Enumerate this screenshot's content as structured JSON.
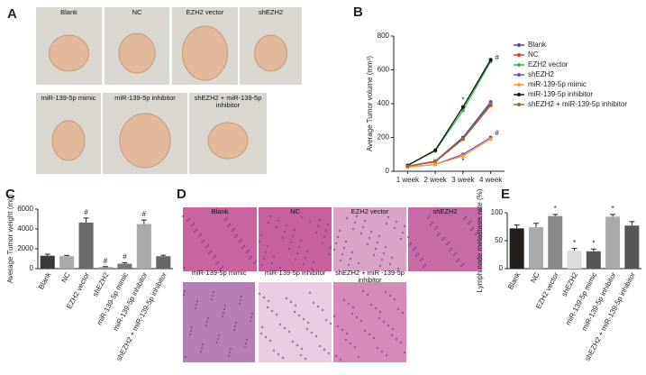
{
  "panel_labels": [
    "A",
    "B",
    "C",
    "D",
    "E"
  ],
  "panel_a": {
    "labels": [
      "Blank",
      "NC",
      "EZH2 vector",
      "shEZH2",
      "miR-139-5p mimic",
      "miR-139-5p inhibitor",
      "shEZH2 + miR-139-5p inhibitor"
    ]
  },
  "panel_d": {
    "labels": [
      "Blank",
      "NC",
      "EZH2 vector",
      "shEZH2",
      "miR-139-5p mimic",
      "miR-139-5p inhibitor",
      "shEZH2 + miR -139-5p inhibitor"
    ]
  },
  "chart_data": [
    {
      "type": "line",
      "y_label": "Average Tumor volume (mm³)",
      "categories": [
        "1 week",
        "2 week",
        "3 week",
        "4 week"
      ],
      "ylim": [
        0,
        800
      ],
      "yticks": [
        0,
        200,
        400,
        600,
        800
      ],
      "series": [
        {
          "name": "Blank",
          "color": "#3d4ea8",
          "values": [
            30,
            60,
            200,
            410
          ]
        },
        {
          "name": "NC",
          "color": "#e03a2f",
          "values": [
            30,
            55,
            190,
            390
          ]
        },
        {
          "name": "EZH2 vector",
          "color": "#3cb34a",
          "values": [
            35,
            120,
            360,
            650
          ]
        },
        {
          "name": "shEZH2",
          "color": "#7b4fa0",
          "values": [
            25,
            40,
            100,
            200
          ]
        },
        {
          "name": "miR-139-5p mimic",
          "color": "#f0a040",
          "values": [
            25,
            40,
            90,
            190
          ]
        },
        {
          "name": "miR-139-5p inhibitor",
          "color": "#111111",
          "values": [
            35,
            125,
            380,
            660
          ]
        },
        {
          "name": "shEZH2 + miR-139-5p inhibitor",
          "color": "#9a6a30",
          "values": [
            30,
            60,
            190,
            400
          ]
        }
      ],
      "annotations": [
        {
          "text": "*",
          "x": "3 week",
          "y": 420
        },
        {
          "text": "#",
          "x": "4 week",
          "y": 670
        },
        {
          "text": "#",
          "x": "4 week",
          "y": 225
        },
        {
          "text": "*",
          "x": "3 week",
          "y": 60
        }
      ]
    },
    {
      "type": "bar",
      "y_label": "Average Tumor weight (mg)",
      "categories": [
        "Blank",
        "NC",
        "EZH2 vector",
        "shEZH2",
        "miR-139-5p mimic",
        "miR-139-5p inhibitor",
        "shEZH2 + miR-139-5p inhibitor"
      ],
      "values": [
        1300,
        1250,
        4650,
        150,
        500,
        4500,
        1250
      ],
      "errors": [
        150,
        80,
        450,
        50,
        100,
        400,
        100
      ],
      "colors": [
        "#3a3a3a",
        "#aaaaaa",
        "#6a6a6a",
        "#999999",
        "#777777",
        "#aaaaaa",
        "#666666"
      ],
      "markers": [
        null,
        null,
        "#",
        "#",
        "#",
        "#",
        null
      ],
      "ylim": [
        0,
        6000
      ],
      "yticks": [
        0,
        2000,
        4000,
        6000
      ]
    },
    {
      "type": "bar",
      "y_label": "Lymph node metastasis rate (%)",
      "categories": [
        "Blank",
        "NC",
        "EZH2 vector",
        "shEZH2",
        "miR-139-5p mimic",
        "miR-139-5p inhibitor",
        "shEZH2 + miR-139-5p inhibitor"
      ],
      "values": [
        72,
        74,
        94,
        32,
        31,
        93,
        77
      ],
      "errors": [
        6,
        7,
        3,
        4,
        4,
        4,
        7
      ],
      "colors": [
        "#231f1d",
        "#aaaaaa",
        "#888888",
        "#dddddd",
        "#555555",
        "#aaaaaa",
        "#555555"
      ],
      "markers": [
        null,
        null,
        "*",
        "*",
        "*",
        "*",
        null
      ],
      "ylim": [
        0,
        100
      ],
      "yticks": [
        0,
        50,
        100
      ]
    }
  ]
}
